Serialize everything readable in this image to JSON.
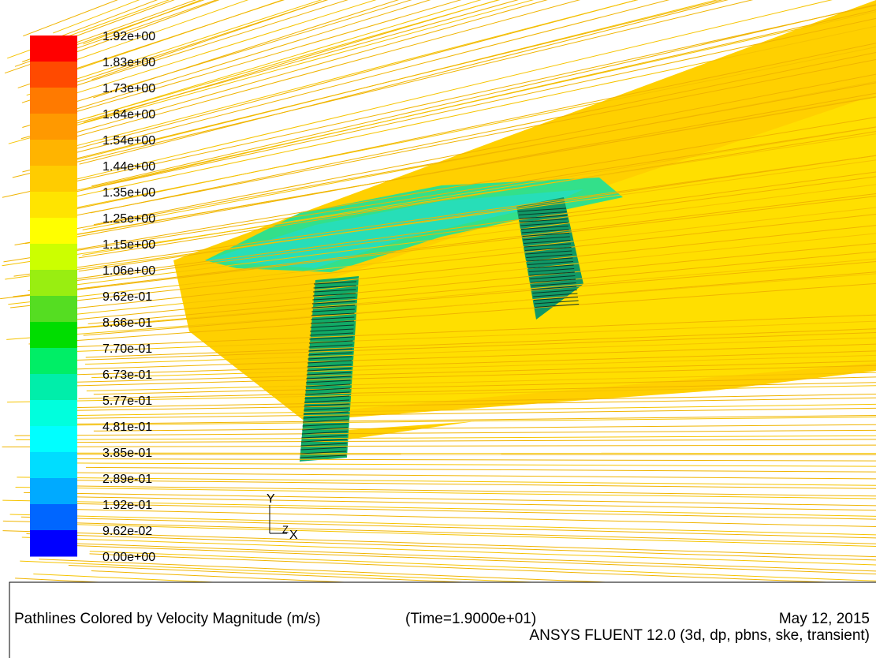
{
  "colorbar": {
    "labels": [
      "1.92e+00",
      "1.83e+00",
      "1.73e+00",
      "1.64e+00",
      "1.54e+00",
      "1.44e+00",
      "1.35e+00",
      "1.25e+00",
      "1.15e+00",
      "1.06e+00",
      "9.62e-01",
      "8.66e-01",
      "7.70e-01",
      "6.73e-01",
      "5.77e-01",
      "4.81e-01",
      "3.85e-01",
      "2.89e-01",
      "1.92e-01",
      "9.62e-02",
      "0.00e+00"
    ],
    "colors": [
      "#ff0000",
      "#ff4a00",
      "#ff7a00",
      "#ff9900",
      "#ffb400",
      "#ffcc00",
      "#ffe400",
      "#ffff00",
      "#ccff00",
      "#99ee11",
      "#55dd22",
      "#00dd00",
      "#00ee66",
      "#00eeaa",
      "#00ffdd",
      "#00ffff",
      "#00ddff",
      "#00aaff",
      "#0066ff",
      "#0000ff"
    ]
  },
  "triad": {
    "y": "Y",
    "z": "Z",
    "x": "X"
  },
  "caption": {
    "title": "Pathlines Colored by Velocity Magnitude (m/s)",
    "time": "(Time=1.9000e+01)",
    "date": "May 12, 2015",
    "solver": "ANSYS FLUENT 12.0 (3d, dp, pbns, ske, transient)"
  }
}
